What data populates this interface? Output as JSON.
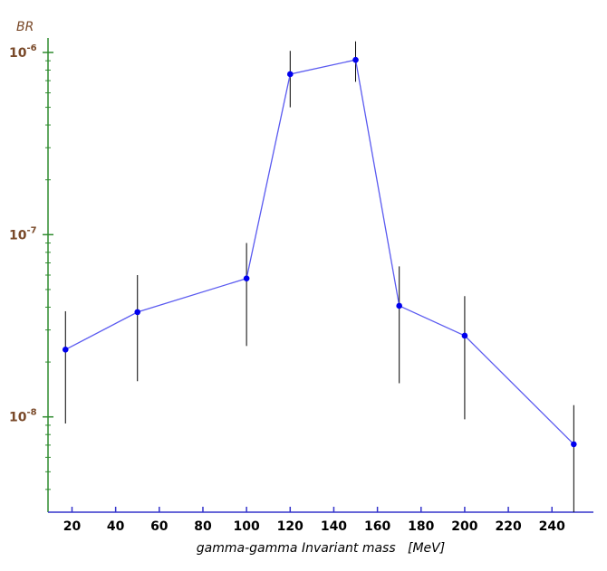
{
  "chart_data": {
    "type": "line",
    "y_label": "BR",
    "x_label": "gamma-gamma Invariant mass   [MeV]",
    "x": [
      17,
      50,
      100,
      120,
      150,
      170,
      200,
      250
    ],
    "series": [
      {
        "color": "#5a5af0",
        "marker_color": "#0000ee",
        "error_color": "#000000",
        "values": [
          2.34e-08,
          3.76e-08,
          5.75e-08,
          7.6e-07,
          9.1e-07,
          4.07e-08,
          2.79e-08,
          7.08e-09
        ],
        "lower": [
          9.2e-09,
          1.57e-08,
          2.45e-08,
          5e-07,
          6.9e-07,
          1.53e-08,
          9.7e-09,
          3e-09
        ],
        "upper": [
          3.8e-08,
          6e-08,
          9e-08,
          1.02e-06,
          1.15e-06,
          6.7e-08,
          4.6e-08,
          1.16e-08
        ]
      }
    ],
    "xlim": [
      9,
      259
    ],
    "xticks": [
      20,
      40,
      60,
      80,
      100,
      120,
      140,
      160,
      180,
      200,
      220,
      240
    ],
    "ylim": [
      3e-09,
      1.2e-06
    ],
    "ylog": true,
    "yticks": [
      {
        "value": 1e-08,
        "label": "10",
        "exponent": "-8"
      },
      {
        "value": 1e-07,
        "label": "10",
        "exponent": "-7"
      },
      {
        "value": 1e-06,
        "label": "10",
        "exponent": "-6"
      }
    ],
    "yminorticks": [
      4e-09,
      5e-09,
      6e-09,
      7e-09,
      8e-09,
      9e-09,
      2e-08,
      3e-08,
      4e-08,
      5e-08,
      6e-08,
      7e-08,
      8e-08,
      9e-08,
      2e-07,
      3e-07,
      4e-07,
      5e-07,
      6e-07,
      7e-07,
      8e-07,
      9e-07
    ],
    "y_axis_color": "#2e8b2e",
    "x_axis_color": "#3333cc",
    "y_label_color": "#7a4a2a"
  }
}
